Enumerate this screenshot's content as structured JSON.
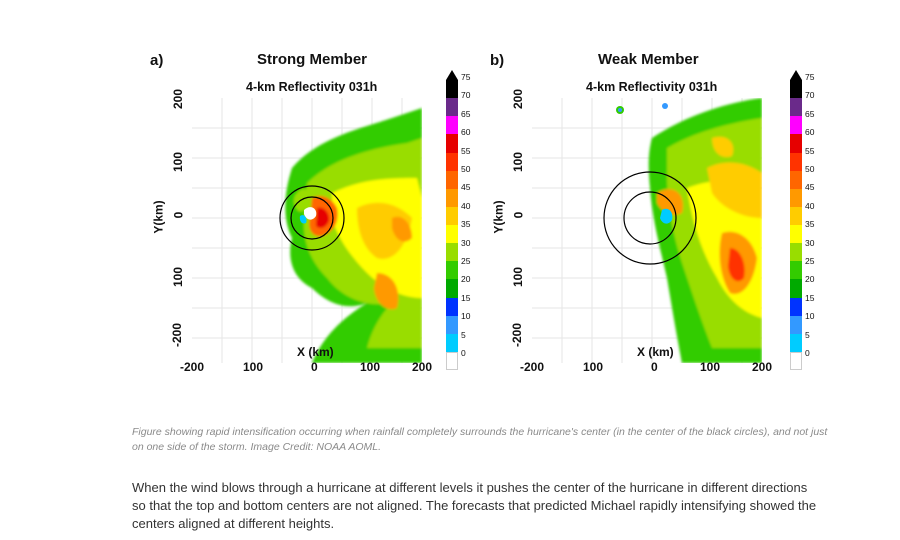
{
  "panels": [
    {
      "letter": "a)",
      "title": "Strong Member",
      "subtitle": "4-km Reflectivity 031h",
      "x_ticks": [
        "-200",
        "100",
        "0",
        "100",
        "200"
      ],
      "y_ticks": [
        "200",
        "100",
        "0",
        "100",
        "-200"
      ],
      "x_label": "X (km)",
      "y_label": "Y(km)"
    },
    {
      "letter": "b)",
      "title": "Weak Member",
      "subtitle": "4-km Reflectivity 031h",
      "x_ticks": [
        "-200",
        "100",
        "0",
        "100",
        "200"
      ],
      "y_ticks": [
        "200",
        "100",
        "0",
        "100",
        "-200"
      ],
      "x_label": "X (km)",
      "y_label": "Y(km)"
    }
  ],
  "colorbar": {
    "ticks": [
      "75",
      "70",
      "65",
      "60",
      "55",
      "50",
      "45",
      "40",
      "35",
      "30",
      "25",
      "20",
      "15",
      "10",
      "5",
      "0"
    ],
    "colors": [
      "#000000",
      "#6a2a8a",
      "#ff00ff",
      "#e60000",
      "#ff3300",
      "#ff6600",
      "#ff9900",
      "#ffcc00",
      "#ffff00",
      "#99dd00",
      "#33cc00",
      "#00aa00",
      "#0033ff",
      "#3399ff",
      "#00ccff",
      "#ffffff"
    ]
  },
  "caption": "Figure showing rapid intensification occurring when rainfall completely surrounds the hurricane's center (in the center of the black circles), and not just on one side of the storm. Image Credit: NOAA AOML.",
  "body_text": "When the wind blows through a hurricane at different levels it pushes the center of the hurricane in different directions so that the top and bottom centers are not aligned.  The forecasts that predicted Michael rapidly intensifying showed the centers aligned at different heights."
}
